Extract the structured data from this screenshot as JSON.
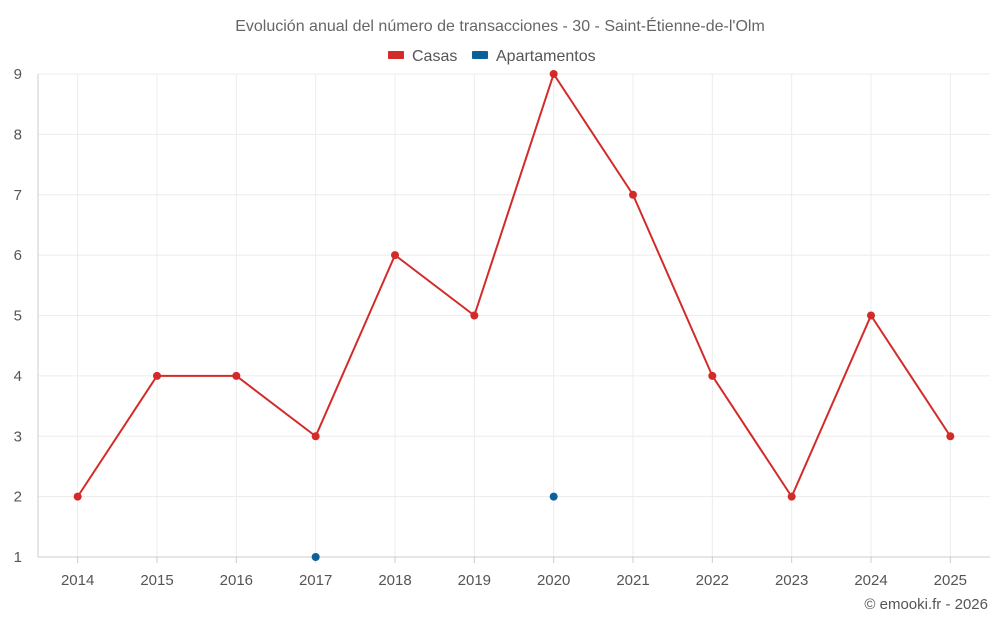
{
  "chart_data": {
    "type": "line",
    "title": "Evolución anual del número de transacciones - 30 - Saint-Étienne-de-l'Olm",
    "categories": [
      "2014",
      "2015",
      "2016",
      "2017",
      "2018",
      "2019",
      "2020",
      "2021",
      "2022",
      "2023",
      "2024",
      "2025"
    ],
    "ylim": [
      1,
      9
    ],
    "yticks": [
      1,
      2,
      3,
      4,
      5,
      6,
      7,
      8,
      9
    ],
    "grid": true,
    "legend_position": "top-center",
    "series": [
      {
        "name": "Casas",
        "color": "#d32a2a",
        "values": [
          2,
          4,
          4,
          3,
          6,
          5,
          9,
          7,
          4,
          2,
          5,
          3
        ]
      },
      {
        "name": "Apartamentos",
        "color": "#0d6199",
        "values": [
          null,
          null,
          null,
          1,
          null,
          null,
          2,
          null,
          null,
          null,
          null,
          null
        ]
      }
    ]
  },
  "credit": "© emooki.fr - 2026"
}
